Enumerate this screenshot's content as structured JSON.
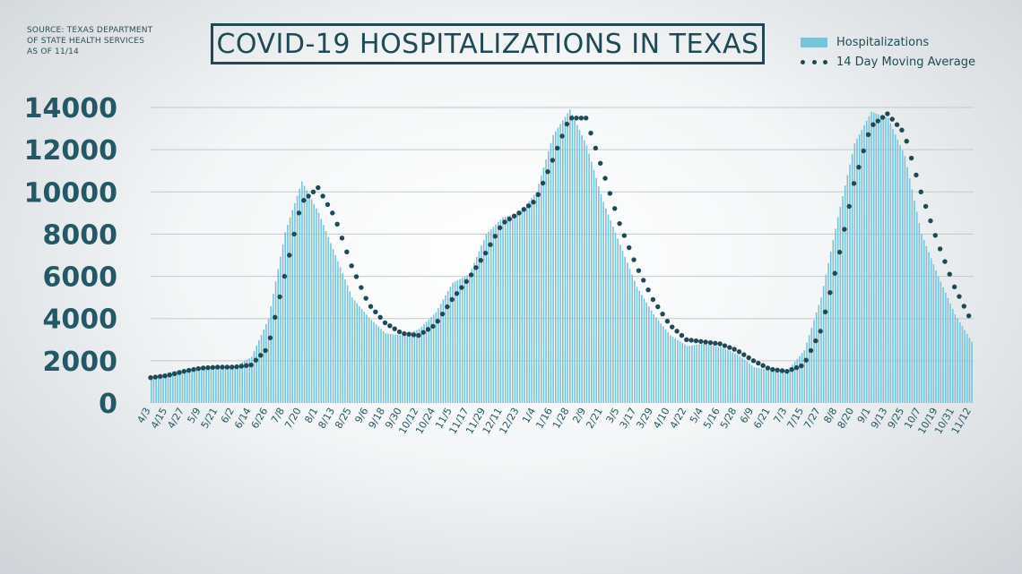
{
  "source": {
    "line1": "SOURCE: TEXAS DEPARTMENT",
    "line2": "OF STATE HEALTH SERVICES",
    "line3": "AS OF 11/14"
  },
  "colors": {
    "bar": "#76c3da",
    "dots": "#1f4a55",
    "grid": "#c3c9cd",
    "text": "#245866"
  },
  "chart_data": {
    "type": "bar",
    "title": "COVID-19 HOSPITALIZATIONS IN TEXAS",
    "xlabel": "",
    "ylabel": "",
    "ylim": [
      0,
      14000
    ],
    "yticks": [
      0,
      2000,
      4000,
      6000,
      8000,
      10000,
      12000,
      14000
    ],
    "grid": true,
    "legend_position": "top-right",
    "categories": [
      "4/3",
      "4/15",
      "4/27",
      "5/9",
      "5/21",
      "6/2",
      "6/14",
      "6/26",
      "7/8",
      "7/20",
      "8/1",
      "8/13",
      "8/25",
      "9/6",
      "9/18",
      "9/30",
      "10/12",
      "10/24",
      "11/5",
      "11/17",
      "11/29",
      "12/11",
      "12/23",
      "1/4",
      "1/16",
      "1/28",
      "2/9",
      "2/21",
      "3/5",
      "3/17",
      "3/29",
      "4/10",
      "4/22",
      "5/4",
      "5/16",
      "5/28",
      "6/9",
      "6/21",
      "7/3",
      "7/15",
      "7/27",
      "8/8",
      "8/20",
      "9/1",
      "9/13",
      "9/25",
      "10/7",
      "10/19",
      "10/31",
      "11/12"
    ],
    "series": [
      {
        "name": "Hospitalizations",
        "kind": "bar",
        "values": [
          1150,
          1450,
          1600,
          1720,
          1680,
          1720,
          2200,
          4000,
          8100,
          10500,
          9000,
          7000,
          5000,
          4050,
          3300,
          3200,
          3500,
          4300,
          5700,
          6100,
          8000,
          8800,
          9000,
          10000,
          12700,
          13900,
          12200,
          9500,
          7500,
          5500,
          4200,
          3200,
          2700,
          2800,
          2650,
          2300,
          1700,
          1550,
          1550,
          2500,
          5000,
          8800,
          12300,
          13800,
          13500,
          11700,
          8000,
          6000,
          4200,
          2900
        ]
      },
      {
        "name": "14 Day Moving Average",
        "kind": "dotted-line",
        "values": [
          1200,
          1300,
          1500,
          1650,
          1700,
          1700,
          1800,
          2600,
          6000,
          9500,
          10200,
          8800,
          6500,
          4700,
          3800,
          3300,
          3200,
          3700,
          4900,
          5900,
          7100,
          8500,
          9000,
          9600,
          11500,
          13500,
          13500,
          11000,
          8500,
          6500,
          4900,
          3700,
          3000,
          2900,
          2800,
          2500,
          2000,
          1600,
          1500,
          1800,
          3400,
          6600,
          10400,
          13100,
          13700,
          12800,
          10000,
          7600,
          5500,
          3900
        ]
      }
    ]
  }
}
